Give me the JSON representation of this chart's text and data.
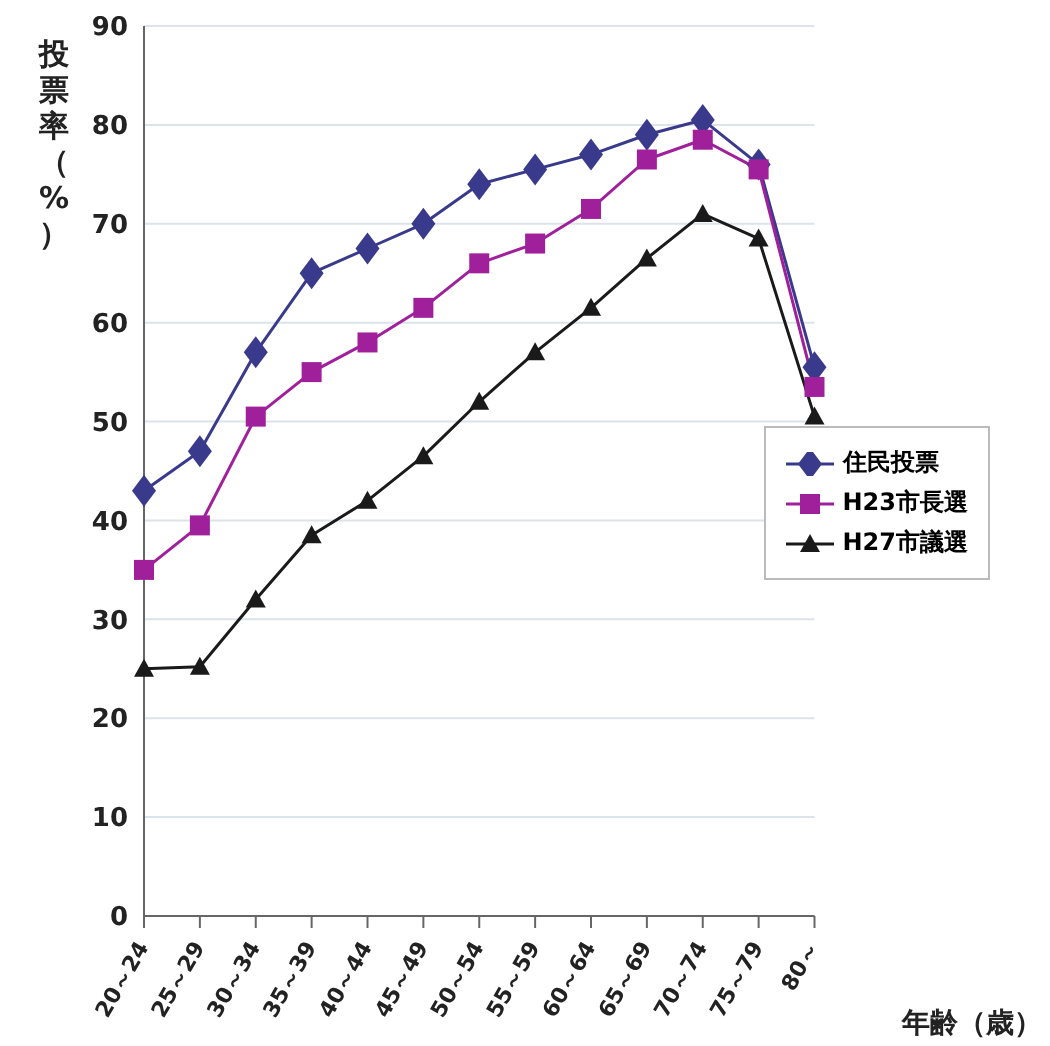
{
  "chart_data": {
    "type": "line",
    "ylabel": "投票率（%）",
    "xlabel": "年齢（歳）",
    "categories": [
      "20～24",
      "25～29",
      "30～34",
      "35～39",
      "40～44",
      "45～49",
      "50～54",
      "55～59",
      "60～64",
      "65～69",
      "70～74",
      "75～79",
      "80～"
    ],
    "series": [
      {
        "name": "住民投票",
        "color": "#3a3a8c",
        "marker": "diamond",
        "values": [
          43,
          47,
          57,
          65,
          67.5,
          70,
          74,
          75.5,
          77,
          79,
          80.5,
          76,
          55.5
        ]
      },
      {
        "name": "H23市長選",
        "color": "#a0209c",
        "marker": "square",
        "values": [
          35,
          39.5,
          50.5,
          55,
          58,
          61.5,
          66,
          68,
          71.5,
          76.5,
          78.5,
          75.5,
          53.5
        ]
      },
      {
        "name": "H27市議選",
        "color": "#1a1a1a",
        "marker": "triangle",
        "values": [
          25,
          25.2,
          32,
          38.5,
          42,
          46.5,
          52,
          57,
          61.5,
          66.5,
          71,
          68.5,
          50.5
        ]
      }
    ],
    "ylim": [
      0,
      90
    ],
    "yticks": [
      0,
      10,
      20,
      30,
      40,
      50,
      60,
      70,
      80,
      90
    ],
    "grid": "y",
    "legend": "right",
    "line_style": "solid"
  }
}
